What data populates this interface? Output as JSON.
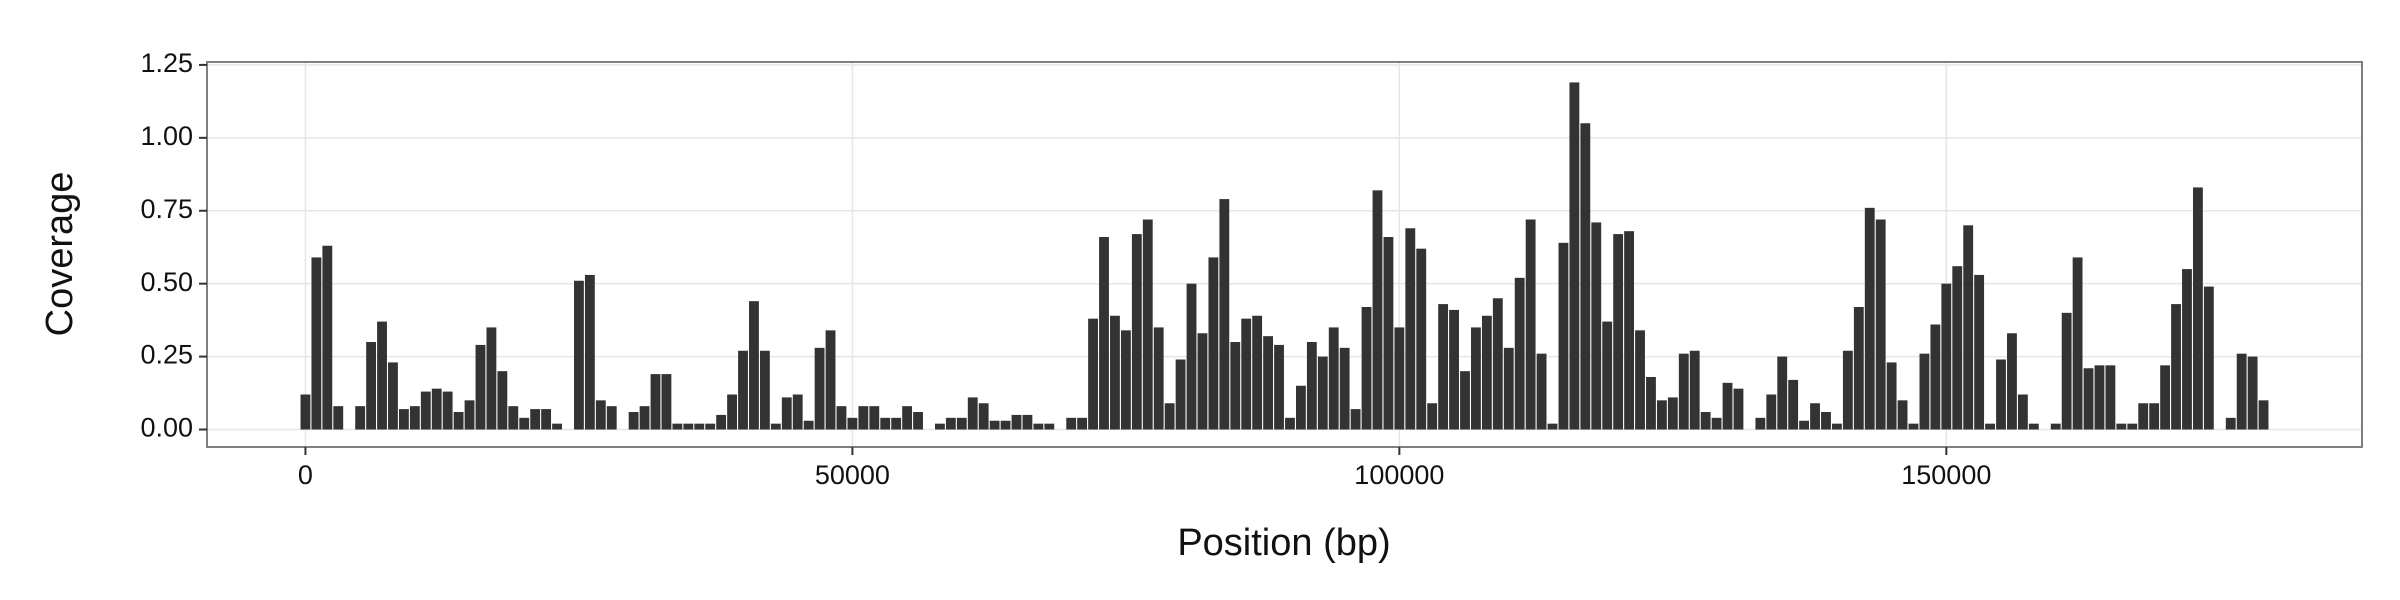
{
  "chart_data": {
    "type": "bar",
    "x_label": "Position (bp)",
    "y_label": "Coverage",
    "x": [
      0,
      1000,
      2000,
      3000,
      5000,
      6000,
      7000,
      8000,
      9000,
      10000,
      11000,
      12000,
      13000,
      14000,
      15000,
      16000,
      17000,
      18000,
      19000,
      20000,
      21000,
      22000,
      23000,
      25000,
      26000,
      27000,
      28000,
      30000,
      31000,
      32000,
      33000,
      34000,
      35000,
      36000,
      37000,
      38000,
      39000,
      40000,
      41000,
      42000,
      43000,
      44000,
      45000,
      46000,
      47000,
      48000,
      49000,
      50000,
      51000,
      52000,
      53000,
      54000,
      55000,
      56000,
      58000,
      59000,
      60000,
      61000,
      62000,
      63000,
      64000,
      65000,
      66000,
      67000,
      68000,
      70000,
      71000,
      72000,
      73000,
      74000,
      75000,
      76000,
      77000,
      78000,
      79000,
      80000,
      81000,
      82000,
      83000,
      84000,
      85000,
      86000,
      87000,
      88000,
      89000,
      90000,
      91000,
      92000,
      93000,
      94000,
      95000,
      96000,
      97000,
      98000,
      99000,
      100000,
      101000,
      102000,
      103000,
      104000,
      105000,
      106000,
      107000,
      108000,
      109000,
      110000,
      111000,
      112000,
      113000,
      114000,
      115000,
      116000,
      117000,
      118000,
      119000,
      120000,
      121000,
      122000,
      123000,
      124000,
      125000,
      126000,
      127000,
      128000,
      129000,
      130000,
      131000,
      133000,
      134000,
      135000,
      136000,
      137000,
      138000,
      139000,
      140000,
      141000,
      142000,
      143000,
      144000,
      145000,
      146000,
      147000,
      148000,
      149000,
      150000,
      151000,
      152000,
      153000,
      154000,
      155000,
      156000,
      157000,
      158000,
      160000,
      161000,
      162000,
      163000,
      164000,
      165000,
      166000,
      167000,
      168000,
      169000,
      170000,
      171000,
      172000,
      173000,
      174000,
      176000,
      177000,
      178000,
      179000
    ],
    "values": [
      0.12,
      0.59,
      0.63,
      0.08,
      0.08,
      0.3,
      0.37,
      0.23,
      0.07,
      0.08,
      0.13,
      0.14,
      0.13,
      0.06,
      0.1,
      0.29,
      0.35,
      0.2,
      0.08,
      0.04,
      0.07,
      0.07,
      0.02,
      0.51,
      0.53,
      0.1,
      0.08,
      0.06,
      0.08,
      0.19,
      0.19,
      0.02,
      0.02,
      0.02,
      0.02,
      0.05,
      0.12,
      0.27,
      0.44,
      0.27,
      0.02,
      0.11,
      0.12,
      0.03,
      0.28,
      0.34,
      0.08,
      0.04,
      0.08,
      0.08,
      0.04,
      0.04,
      0.08,
      0.06,
      0.02,
      0.04,
      0.04,
      0.11,
      0.09,
      0.03,
      0.03,
      0.05,
      0.05,
      0.02,
      0.02,
      0.04,
      0.04,
      0.38,
      0.66,
      0.39,
      0.34,
      0.67,
      0.72,
      0.35,
      0.09,
      0.24,
      0.5,
      0.33,
      0.59,
      0.79,
      0.3,
      0.38,
      0.39,
      0.32,
      0.29,
      0.04,
      0.15,
      0.3,
      0.25,
      0.35,
      0.28,
      0.07,
      0.42,
      0.82,
      0.66,
      0.35,
      0.69,
      0.62,
      0.09,
      0.43,
      0.41,
      0.2,
      0.35,
      0.39,
      0.45,
      0.28,
      0.52,
      0.72,
      0.26,
      0.02,
      0.64,
      1.19,
      1.05,
      0.71,
      0.37,
      0.67,
      0.68,
      0.34,
      0.18,
      0.1,
      0.11,
      0.26,
      0.27,
      0.06,
      0.04,
      0.16,
      0.14,
      0.04,
      0.12,
      0.25,
      0.17,
      0.03,
      0.09,
      0.06,
      0.02,
      0.27,
      0.42,
      0.76,
      0.72,
      0.23,
      0.1,
      0.02,
      0.26,
      0.36,
      0.5,
      0.56,
      0.7,
      0.53,
      0.02,
      0.24,
      0.33,
      0.12,
      0.02,
      0.02,
      0.4,
      0.59,
      0.21,
      0.22,
      0.22,
      0.02,
      0.02,
      0.09,
      0.09,
      0.22,
      0.43,
      0.55,
      0.83,
      0.49,
      0.04,
      0.26,
      0.25,
      0.1
    ],
    "color": "#333333",
    "xlim": [
      -9000,
      188000
    ],
    "ylim": [
      -0.06,
      1.26
    ],
    "xticks": [
      0,
      50000,
      100000,
      150000
    ],
    "yticks": [
      {
        "value": 0,
        "label": "0.00"
      },
      0.25,
      {
        "value": 0.5,
        "label": "0.50"
      },
      0.75,
      {
        "value": 1,
        "label": "1.00"
      },
      1.25
    ],
    "grid": true
  }
}
